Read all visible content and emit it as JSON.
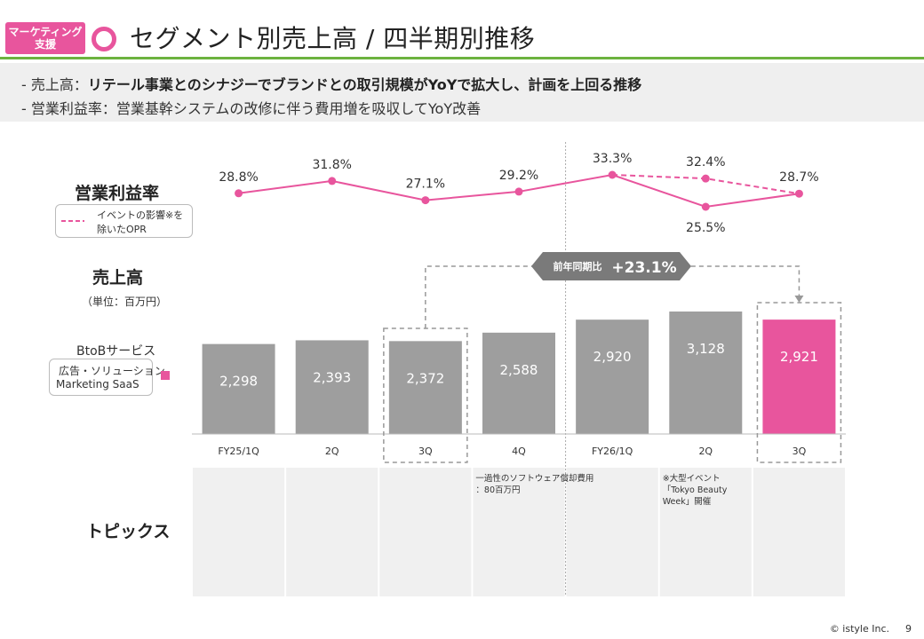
{
  "header": {
    "tag_line1": "マーケティング",
    "tag_line2": "支援",
    "title": "セグメント別売上高 / 四半期別推移"
  },
  "summary": {
    "line1_prefix": "-  売上高：",
    "line1_bold": "リテール事業とのシナジーでブランドとの取引規模がYoYで拡大し、計画を上回る推移",
    "line2": "-  営業利益率：営業基幹システムの改修に伴う費用増を吸収してYoY改善"
  },
  "labels": {
    "opm": "営業利益率",
    "legend_note_line1": "イベントの影響※を",
    "legend_note_line2": "除いたOPR",
    "sales": "売上高",
    "unit": "（単位：百万円）",
    "btob": "BtoBサービス",
    "segment_line1": "広告・ソリューション",
    "segment_line2": "Marketing SaaS",
    "topics": "トピックス",
    "yoy_prefix": "前年同期比",
    "yoy_value": "+23.1%"
  },
  "colors": {
    "pink": "#e8559d",
    "gray_bar": "#9e9e9e",
    "green": "#6cb33f"
  },
  "chart_data": {
    "type": "bar",
    "categories": [
      "FY25/1Q",
      "2Q",
      "3Q",
      "4Q",
      "FY26/1Q",
      "2Q",
      "3Q"
    ],
    "values": [
      2298,
      2393,
      2372,
      2588,
      2920,
      3128,
      2921
    ],
    "value_labels": [
      "2,298",
      "2,393",
      "2,372",
      "2,588",
      "2,920",
      "3,128",
      "2,921"
    ],
    "highlight_index": 6,
    "ylim": [
      0,
      3128
    ],
    "line_series": {
      "values": [
        28.8,
        31.8,
        27.1,
        29.2,
        33.3,
        25.5,
        28.7
      ],
      "labels": [
        "28.8%",
        "31.8%",
        "27.1%",
        "29.2%",
        "33.3%",
        "25.5%",
        "28.7%"
      ]
    },
    "adjusted_series": {
      "indices": [
        4,
        5,
        6
      ],
      "values": [
        33.3,
        32.4,
        28.7
      ],
      "labels": [
        "",
        "32.4%",
        ""
      ]
    },
    "topics": [
      "",
      "",
      "",
      "一過性のソフトウェア償却費用：80百万円",
      "",
      "※大型イベント「Tokyo Beauty Week」開催",
      ""
    ]
  },
  "footer": {
    "copyright": "© istyle Inc.",
    "page": "9"
  }
}
